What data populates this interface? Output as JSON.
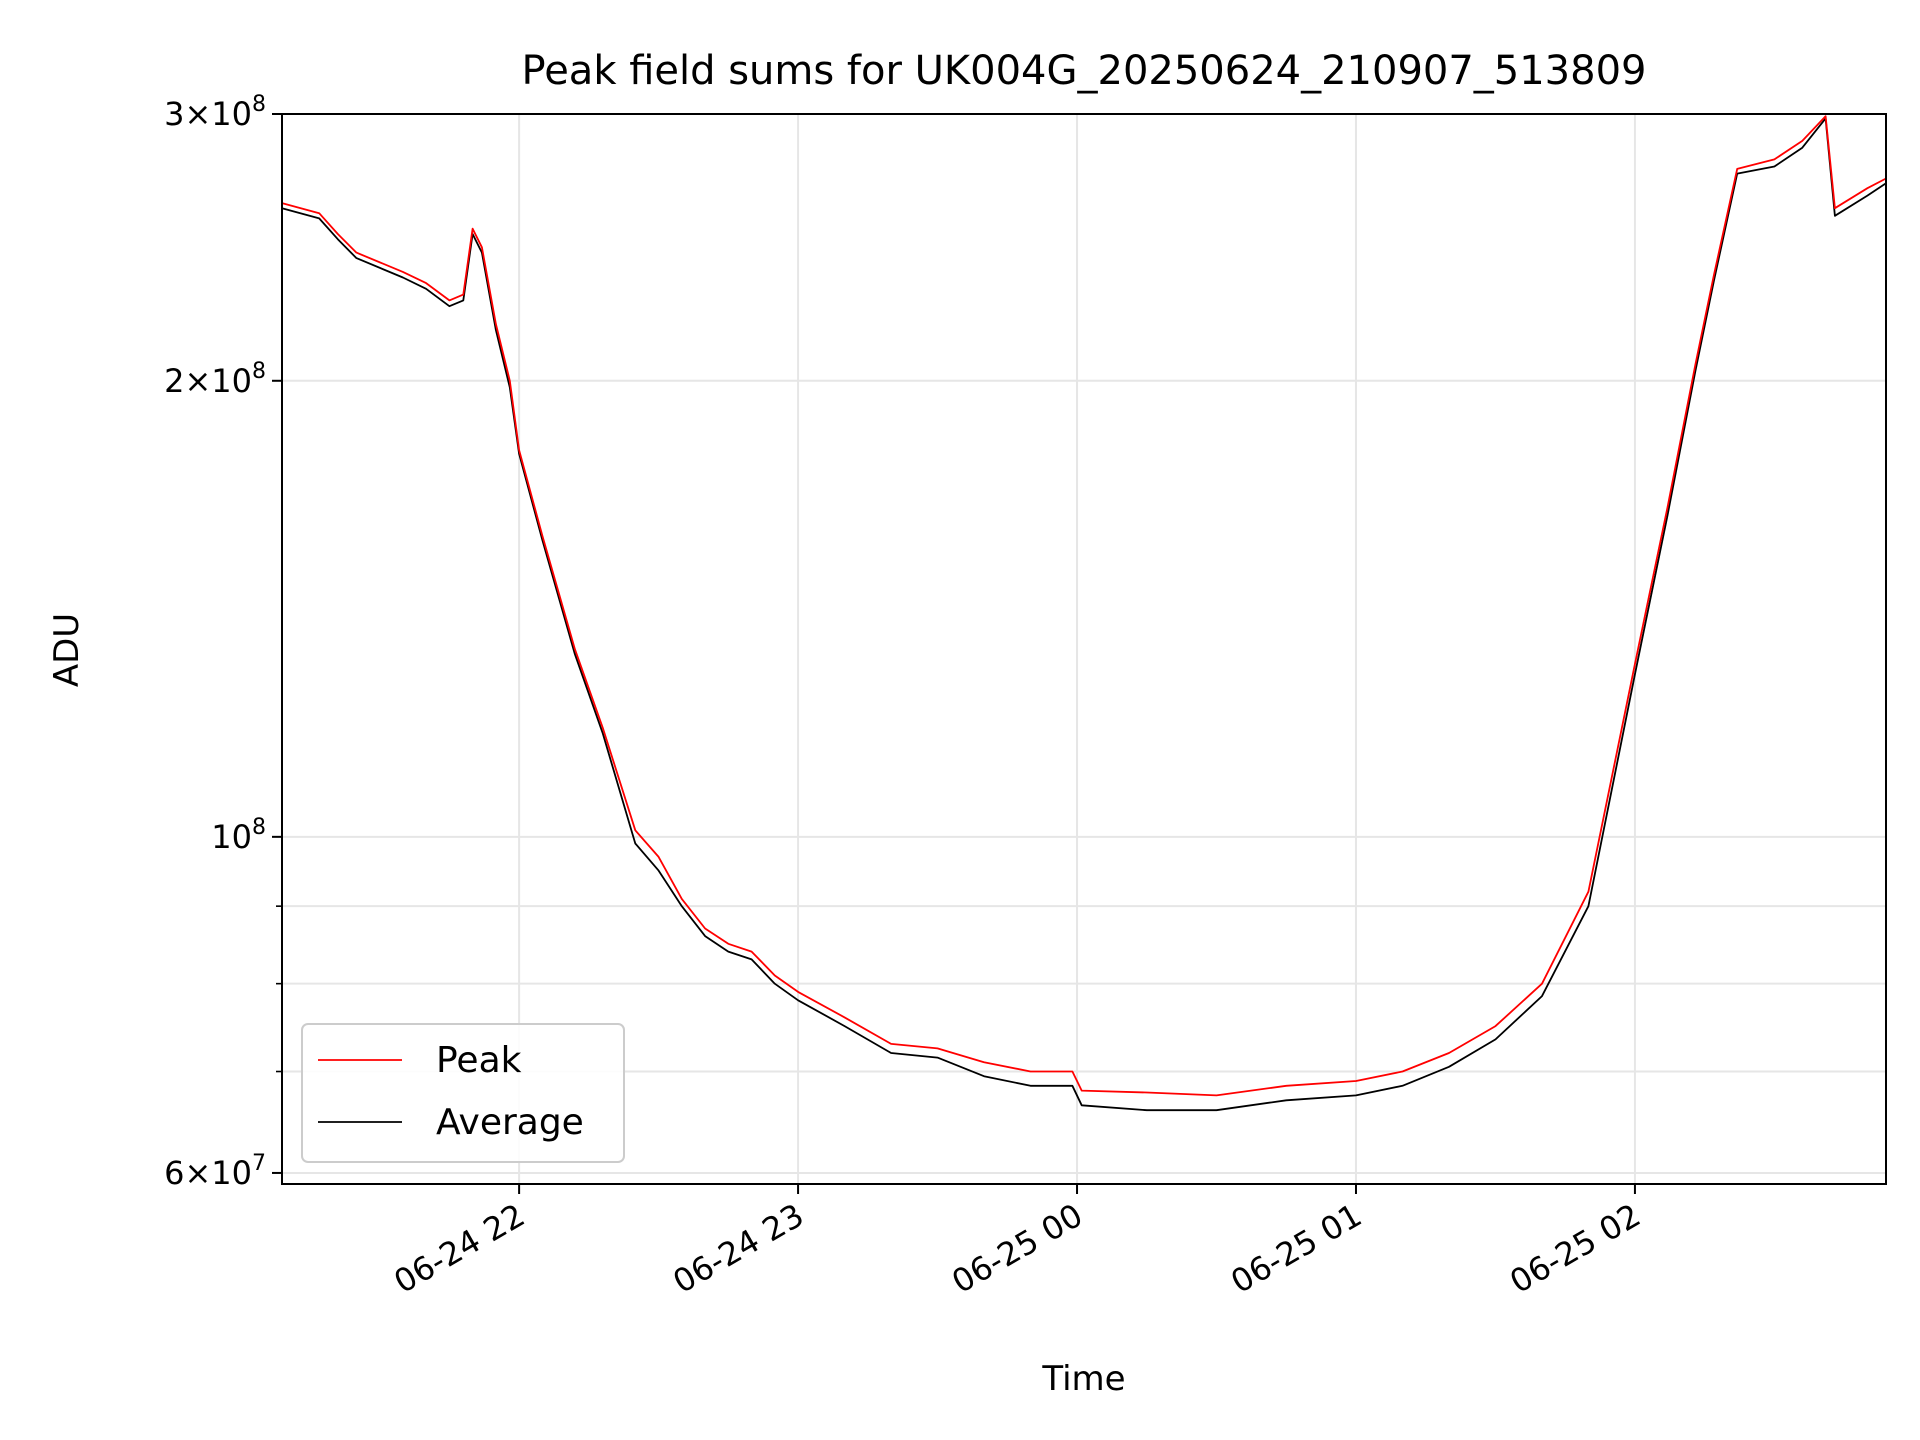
{
  "chart_data": {
    "type": "line",
    "title": "Peak field sums for UK004G_20250624_210907_513809",
    "xlabel": "Time",
    "ylabel": "ADU",
    "y_scale": "log",
    "ylim": [
      59000000,
      300000000
    ],
    "xlim": [
      "2025-06-24 21:09",
      "2025-06-25 02:54"
    ],
    "grid": true,
    "legend": "lower-left",
    "x_ticks": [
      {
        "t": "2025-06-24 22:00",
        "label": "06-24 22"
      },
      {
        "t": "2025-06-24 23:00",
        "label": "06-24 23"
      },
      {
        "t": "2025-06-25 00:00",
        "label": "06-25 00"
      },
      {
        "t": "2025-06-25 01:00",
        "label": "06-25 01"
      },
      {
        "t": "2025-06-25 02:00",
        "label": "06-25 02"
      }
    ],
    "y_ticks": [
      {
        "value": 300000000,
        "mantissa": "3",
        "times": "×",
        "base": "10",
        "exp": "8"
      },
      {
        "value": 200000000,
        "mantissa": "2",
        "times": "×",
        "base": "10",
        "exp": "8"
      },
      {
        "value": 100000000,
        "mantissa": "",
        "times": "",
        "base": "10",
        "exp": "8"
      },
      {
        "value": 60000000,
        "mantissa": "6",
        "times": "×",
        "base": "10",
        "exp": "7"
      }
    ],
    "y_minor_ticks": [
      70000000,
      80000000,
      90000000
    ],
    "series": [
      {
        "name": "Peak",
        "color": "#ff0000",
        "points": [
          [
            "2025-06-24 21:09",
            262000000
          ],
          [
            "2025-06-24 21:17",
            258000000
          ],
          [
            "2025-06-24 21:21",
            250000000
          ],
          [
            "2025-06-24 21:25",
            243000000
          ],
          [
            "2025-06-24 21:35",
            236000000
          ],
          [
            "2025-06-24 21:40",
            232000000
          ],
          [
            "2025-06-24 21:45",
            226000000
          ],
          [
            "2025-06-24 21:48",
            228000000
          ],
          [
            "2025-06-24 21:50",
            252000000
          ],
          [
            "2025-06-24 21:52",
            245000000
          ],
          [
            "2025-06-24 21:55",
            218000000
          ],
          [
            "2025-06-24 21:58",
            200000000
          ],
          [
            "2025-06-24 22:00",
            180000000
          ],
          [
            "2025-06-24 22:05",
            158000000
          ],
          [
            "2025-06-24 22:12",
            133000000
          ],
          [
            "2025-06-24 22:18",
            118000000
          ],
          [
            "2025-06-24 22:25",
            101000000
          ],
          [
            "2025-06-24 22:30",
            97000000
          ],
          [
            "2025-06-24 22:35",
            91000000
          ],
          [
            "2025-06-24 22:40",
            87000000
          ],
          [
            "2025-06-24 22:45",
            85000000
          ],
          [
            "2025-06-24 22:50",
            84000000
          ],
          [
            "2025-06-24 22:55",
            81000000
          ],
          [
            "2025-06-24 23:00",
            79000000
          ],
          [
            "2025-06-24 23:10",
            76000000
          ],
          [
            "2025-06-24 23:20",
            73000000
          ],
          [
            "2025-06-24 23:30",
            72500000
          ],
          [
            "2025-06-24 23:40",
            71000000
          ],
          [
            "2025-06-24 23:50",
            70000000
          ],
          [
            "2025-06-24 23:59",
            70000000
          ],
          [
            "2025-06-25 00:01",
            68000000
          ],
          [
            "2025-06-25 00:15",
            67800000
          ],
          [
            "2025-06-25 00:30",
            67500000
          ],
          [
            "2025-06-25 00:45",
            68500000
          ],
          [
            "2025-06-25 01:00",
            69000000
          ],
          [
            "2025-06-25 01:10",
            70000000
          ],
          [
            "2025-06-25 01:20",
            72000000
          ],
          [
            "2025-06-25 01:30",
            75000000
          ],
          [
            "2025-06-25 01:40",
            80000000
          ],
          [
            "2025-06-25 01:50",
            92000000
          ],
          [
            "2025-06-25 02:00",
            130000000
          ],
          [
            "2025-06-25 02:07",
            165000000
          ],
          [
            "2025-06-25 02:13",
            205000000
          ],
          [
            "2025-06-25 02:17",
            235000000
          ],
          [
            "2025-06-25 02:22",
            276000000
          ],
          [
            "2025-06-25 02:30",
            280000000
          ],
          [
            "2025-06-25 02:36",
            288000000
          ],
          [
            "2025-06-25 02:41",
            299000000
          ],
          [
            "2025-06-25 02:43",
            260000000
          ],
          [
            "2025-06-25 02:50",
            268000000
          ],
          [
            "2025-06-25 02:54",
            272000000
          ]
        ]
      },
      {
        "name": "Average",
        "color": "#000000",
        "points": [
          [
            "2025-06-24 21:09",
            260000000
          ],
          [
            "2025-06-24 21:17",
            256000000
          ],
          [
            "2025-06-24 21:21",
            248000000
          ],
          [
            "2025-06-24 21:25",
            241000000
          ],
          [
            "2025-06-24 21:35",
            234000000
          ],
          [
            "2025-06-24 21:40",
            230000000
          ],
          [
            "2025-06-24 21:45",
            224000000
          ],
          [
            "2025-06-24 21:48",
            226000000
          ],
          [
            "2025-06-24 21:50",
            250000000
          ],
          [
            "2025-06-24 21:52",
            243000000
          ],
          [
            "2025-06-24 21:55",
            216000000
          ],
          [
            "2025-06-24 21:58",
            198000000
          ],
          [
            "2025-06-24 22:00",
            179000000
          ],
          [
            "2025-06-24 22:05",
            157000000
          ],
          [
            "2025-06-24 22:12",
            132000000
          ],
          [
            "2025-06-24 22:18",
            117000000
          ],
          [
            "2025-06-24 22:25",
            99000000
          ],
          [
            "2025-06-24 22:30",
            95000000
          ],
          [
            "2025-06-24 22:35",
            90000000
          ],
          [
            "2025-06-24 22:40",
            86000000
          ],
          [
            "2025-06-24 22:45",
            84000000
          ],
          [
            "2025-06-24 22:50",
            83000000
          ],
          [
            "2025-06-24 22:55",
            80000000
          ],
          [
            "2025-06-24 23:00",
            78000000
          ],
          [
            "2025-06-24 23:10",
            75000000
          ],
          [
            "2025-06-24 23:20",
            72000000
          ],
          [
            "2025-06-24 23:30",
            71500000
          ],
          [
            "2025-06-24 23:40",
            69500000
          ],
          [
            "2025-06-24 23:50",
            68500000
          ],
          [
            "2025-06-24 23:59",
            68500000
          ],
          [
            "2025-06-25 00:01",
            66500000
          ],
          [
            "2025-06-25 00:15",
            66000000
          ],
          [
            "2025-06-25 00:30",
            66000000
          ],
          [
            "2025-06-25 00:45",
            67000000
          ],
          [
            "2025-06-25 01:00",
            67500000
          ],
          [
            "2025-06-25 01:10",
            68500000
          ],
          [
            "2025-06-25 01:20",
            70500000
          ],
          [
            "2025-06-25 01:30",
            73500000
          ],
          [
            "2025-06-25 01:40",
            78500000
          ],
          [
            "2025-06-25 01:50",
            90000000
          ],
          [
            "2025-06-25 02:00",
            128000000
          ],
          [
            "2025-06-25 02:07",
            163000000
          ],
          [
            "2025-06-25 02:13",
            203000000
          ],
          [
            "2025-06-25 02:17",
            233000000
          ],
          [
            "2025-06-25 02:22",
            274000000
          ],
          [
            "2025-06-25 02:30",
            277000000
          ],
          [
            "2025-06-25 02:36",
            285000000
          ],
          [
            "2025-06-25 02:41",
            298000000
          ],
          [
            "2025-06-25 02:43",
            257000000
          ],
          [
            "2025-06-25 02:50",
            265000000
          ],
          [
            "2025-06-25 02:54",
            270000000
          ]
        ]
      }
    ]
  }
}
